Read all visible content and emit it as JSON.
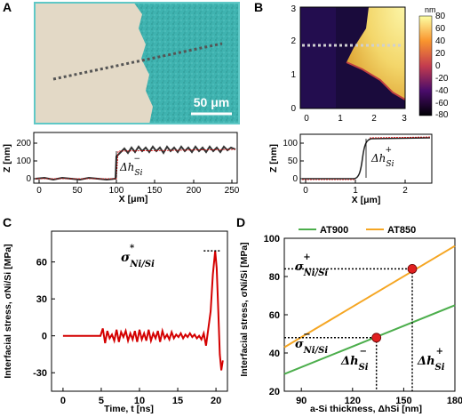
{
  "panels": {
    "A": {
      "letter": "A",
      "scale_bar_label": "50 μm",
      "profile": {
        "ylabel": "Z [nm]",
        "xlabel": "X [μm]",
        "yticks": [
          "0",
          "100",
          "200"
        ],
        "xticks": [
          "0",
          "50",
          "100",
          "150",
          "200",
          "250"
        ],
        "annotation": "Δh",
        "annotation_sub": "Si",
        "annotation_sup": "−"
      }
    },
    "B": {
      "letter": "B",
      "map_yticks": [
        "0",
        "1",
        "2",
        "3"
      ],
      "map_xticks": [
        "0",
        "1",
        "2",
        "3"
      ],
      "colorbar_unit": "nm",
      "colorbar_ticks": [
        "80",
        "60",
        "40",
        "20",
        "0",
        "-20",
        "-40",
        "-60",
        "-80"
      ],
      "profile": {
        "ylabel": "Z [nm]",
        "xlabel": "X [μm]",
        "yticks": [
          "0",
          "50",
          "100"
        ],
        "xticks": [
          "0",
          "1",
          "2"
        ],
        "annotation": "Δh",
        "annotation_sub": "Si",
        "annotation_sup": "+"
      }
    },
    "C": {
      "letter": "C",
      "annotation": "σ",
      "annotation_sub": "Ni/Si",
      "annotation_sup": "*"
    },
    "D": {
      "letter": "D",
      "labels": {
        "sigma_plus": "σ",
        "sigma_plus_sup": "+",
        "sigma_plus_sub": "Ni/Si",
        "sigma_minus": "σ",
        "sigma_minus_sup": "−",
        "sigma_minus_sub": "Ni/Si",
        "dh_minus": "Δh",
        "dh_minus_sup": "−",
        "dh_minus_sub": "Si",
        "dh_plus": "Δh",
        "dh_plus_sup": "+",
        "dh_plus_sub": "Si"
      }
    }
  },
  "chart_data": [
    {
      "type": "line",
      "panel": "C",
      "xlabel": "Time, t [ns]",
      "ylabel": "Interfacial stress, σNi/Si [MPa]",
      "xlim": [
        -1.5,
        21.5
      ],
      "ylim": [
        -45,
        85
      ],
      "xticks": [
        0,
        5,
        10,
        15,
        20
      ],
      "yticks": [
        -30,
        0,
        30,
        60
      ],
      "series": [
        {
          "color": "#d40000",
          "x": [
            0,
            4.9,
            5.2,
            5.5,
            5.8,
            6.1,
            6.4,
            6.7,
            7.0,
            7.3,
            7.6,
            7.9,
            8.2,
            8.5,
            8.8,
            9.1,
            9.4,
            9.7,
            10.0,
            10.3,
            10.6,
            10.9,
            11.2,
            11.5,
            11.8,
            12.1,
            12.4,
            12.7,
            13.0,
            13.3,
            13.6,
            13.9,
            14.2,
            14.5,
            14.8,
            15.1,
            15.4,
            15.7,
            16.0,
            16.3,
            16.6,
            16.9,
            17.2,
            17.5,
            17.8,
            18.1,
            18.4,
            18.7,
            19.0,
            19.3,
            19.6,
            19.9,
            20.1,
            20.3,
            20.5,
            20.7,
            20.9
          ],
          "y": [
            0,
            0,
            6,
            -6,
            4,
            -2,
            1,
            -4,
            5,
            -5,
            3,
            -1,
            4,
            -4,
            2,
            -3,
            4,
            -5,
            5,
            -3,
            2,
            -4,
            5,
            -4,
            2,
            -2,
            4,
            -5,
            4,
            -2,
            1,
            -3,
            3,
            -2,
            1,
            -1,
            2,
            -2,
            1,
            -1,
            2,
            -1,
            1,
            -2,
            0,
            -3,
            2,
            -8,
            6,
            20,
            50,
            69,
            55,
            20,
            -15,
            -28,
            -20
          ]
        }
      ],
      "peak_value": 69
    },
    {
      "type": "line",
      "panel": "D",
      "xlabel": "a-Si thickness, ΔhSi [nm]",
      "ylabel": "Interfacial stress, σNi/Si [MPa]",
      "xlim": [
        80,
        180
      ],
      "ylim": [
        20,
        100
      ],
      "xticks": [
        90,
        120,
        150,
        180
      ],
      "yticks": [
        20,
        40,
        60,
        80,
        100
      ],
      "legend_position": "top",
      "series": [
        {
          "name": "AT900",
          "color": "#4cae4c",
          "x": [
            80,
            180
          ],
          "y": [
            29,
            65
          ]
        },
        {
          "name": "AT850",
          "color": "#f5a623",
          "x": [
            80,
            180
          ],
          "y": [
            43,
            96
          ]
        }
      ],
      "markers": [
        {
          "x": 134,
          "y": 48
        },
        {
          "x": 155,
          "y": 84
        }
      ]
    }
  ]
}
